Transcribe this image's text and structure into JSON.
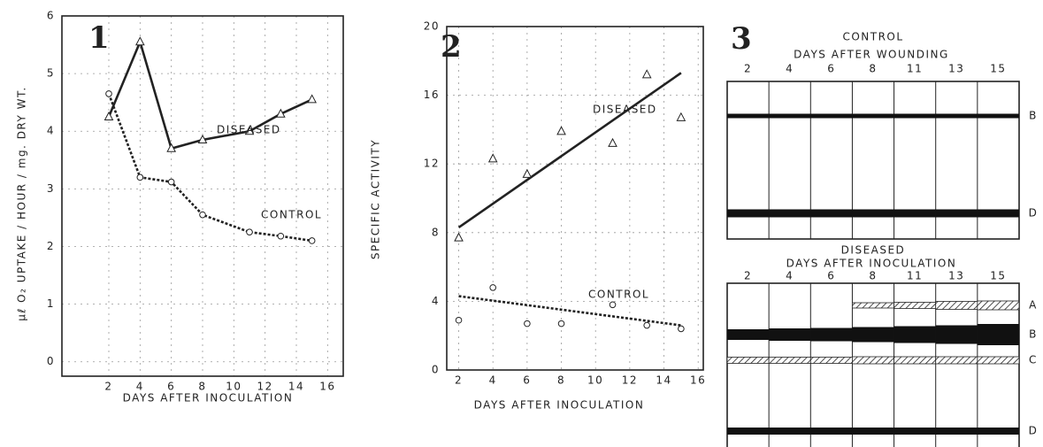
{
  "chart_data": [
    {
      "type": "line",
      "number": "1",
      "ylabel": "μℓ O₂ UPTAKE / HOUR / mg. DRY WT.",
      "xlabel": "DAYS AFTER INOCULATION",
      "xlim": [
        -1,
        17
      ],
      "ylim": [
        -0.25,
        6
      ],
      "xticks": [
        2,
        4,
        6,
        8,
        10,
        12,
        14,
        16
      ],
      "yticks": [
        0,
        1,
        2,
        3,
        4,
        5,
        6
      ],
      "grid": true,
      "series": [
        {
          "name": "DISEASED",
          "color": "#222",
          "marker": "triangle",
          "dashed": false,
          "x": [
            2,
            4,
            6,
            8,
            11,
            13,
            15
          ],
          "values": [
            4.25,
            5.55,
            3.7,
            3.85,
            4.0,
            4.3,
            4.55
          ]
        },
        {
          "name": "CONTROL",
          "color": "#222",
          "marker": "circle",
          "dashed": true,
          "x": [
            2,
            4,
            6,
            8,
            11,
            13,
            15
          ],
          "values": [
            4.65,
            3.2,
            3.12,
            2.55,
            2.25,
            2.18,
            2.1
          ]
        }
      ]
    },
    {
      "type": "scatter",
      "number": "2",
      "ylabel": "SPECIFIC ACTIVITY",
      "xlabel": "DAYS AFTER INOCULATION",
      "xlim": [
        1.3,
        16.3
      ],
      "ylim": [
        0,
        20
      ],
      "xticks": [
        2,
        4,
        6,
        8,
        10,
        12,
        14,
        16
      ],
      "yticks": [
        0,
        4,
        8,
        12,
        16,
        20
      ],
      "grid": true,
      "series": [
        {
          "name": "DISEASED",
          "color": "#222",
          "marker": "triangle",
          "dashed": false,
          "x": [
            2,
            4,
            6,
            8,
            11,
            13,
            15
          ],
          "values": [
            7.7,
            12.3,
            11.4,
            13.9,
            13.2,
            17.2,
            14.7
          ],
          "fit": {
            "x": [
              2,
              15
            ],
            "values": [
              8.3,
              17.3
            ]
          }
        },
        {
          "name": "CONTROL",
          "color": "#222",
          "marker": "circle",
          "dashed": true,
          "x": [
            2,
            4,
            6,
            8,
            11,
            13,
            15
          ],
          "values": [
            2.9,
            4.8,
            2.7,
            2.7,
            3.8,
            2.6,
            2.4
          ],
          "fit": {
            "x": [
              2,
              15
            ],
            "values": [
              4.3,
              2.6
            ]
          }
        }
      ]
    },
    {
      "type": "gel",
      "number": "3",
      "sections": [
        {
          "title": "CONTROL",
          "xlabel": "DAYS AFTER WOUNDING",
          "lanes": [
            "2",
            "4",
            "6",
            "8",
            "11",
            "13",
            "15"
          ],
          "bands": [
            "B",
            "D"
          ]
        },
        {
          "title": "DISEASED",
          "xlabel": "DAYS AFTER INOCULATION",
          "lanes": [
            "2",
            "4",
            "6",
            "8",
            "11",
            "13",
            "15"
          ],
          "bands": [
            "A",
            "B",
            "C",
            "D"
          ]
        }
      ]
    }
  ]
}
